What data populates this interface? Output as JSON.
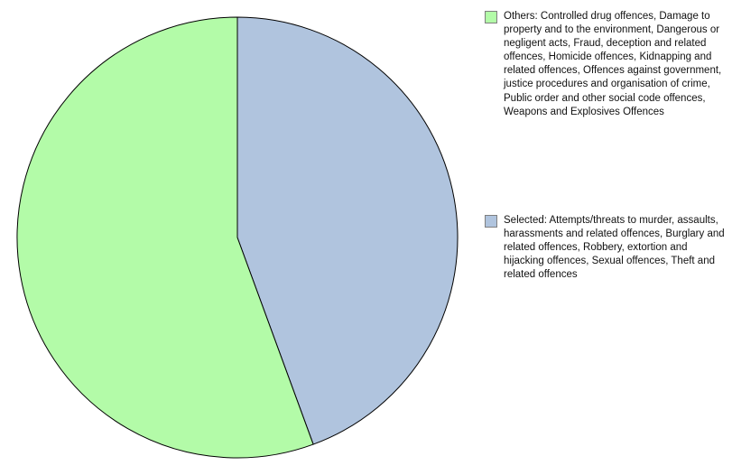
{
  "chart_data": {
    "type": "pie",
    "title": "",
    "slices": [
      {
        "label": "Others: Controlled drug offences, Damage to property and to the environment, Dangerous or negligent acts, Fraud, deception and related offences, Homicide offences, Kidnapping and related offences, Offences against government, justice procedures and organisation of crime, Public order and other social code offences, Weapons and Explosives Offences",
        "value": 55.6,
        "color": "#b3fba8"
      },
      {
        "label": "Selected: Attempts/threats to murder, assaults, harassments and related offences, Burglary and related offences, Robbery, extortion and hijacking offences, Sexual offences, Theft and related offences",
        "value": 44.4,
        "color": "#b0c4de"
      }
    ],
    "legend": {
      "position": "right",
      "items": [
        "Others: Controlled drug offences, Damage to property and to the environment, Dangerous or negligent acts, Fraud, deception and related offences, Homicide offences, Kidnapping and related offences, Offences against government, justice procedures and organisation of crime, Public order and other social code offences, Weapons and Explosives Offences",
        "Selected: Attempts/threats to murder, assaults, harassments and related offences, Burglary and related offences, Robbery, extortion and hijacking offences, Sexual offences, Theft and related offences"
      ]
    }
  }
}
